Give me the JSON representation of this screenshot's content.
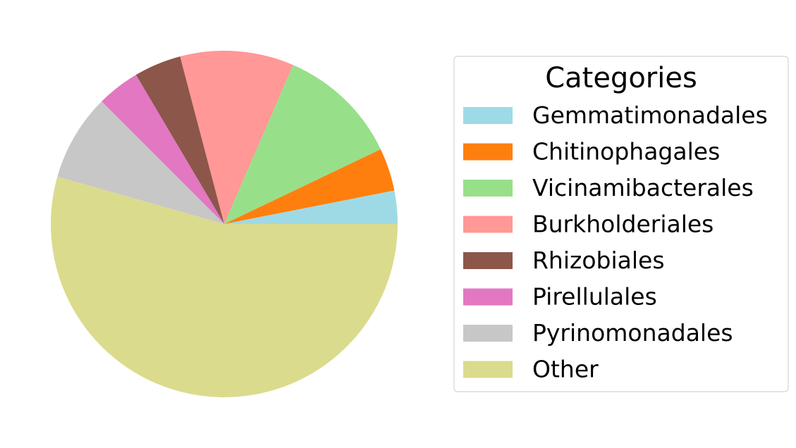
{
  "chart_data": {
    "type": "pie",
    "title": "",
    "start_angle_deg": 0,
    "direction": "counterclockwise",
    "legend": {
      "title": "Categories",
      "placement": "right"
    },
    "slices": [
      {
        "label": "Gemmatimonadales",
        "value": 3.1,
        "color": "#9edae5"
      },
      {
        "label": "Chitinophagales",
        "value": 4.0,
        "color": "#ff7f0e"
      },
      {
        "label": "Vicinamibacterales",
        "value": 11.4,
        "color": "#98df8a"
      },
      {
        "label": "Burkholderiales",
        "value": 10.6,
        "color": "#ff9896"
      },
      {
        "label": "Rhizobiales",
        "value": 4.4,
        "color": "#8c564b"
      },
      {
        "label": "Pirellulales",
        "value": 4.0,
        "color": "#e377c2"
      },
      {
        "label": "Pyrinomonadales",
        "value": 8.1,
        "color": "#c7c7c7"
      },
      {
        "label": "Other",
        "value": 54.4,
        "color": "#dbdb8d"
      }
    ]
  }
}
